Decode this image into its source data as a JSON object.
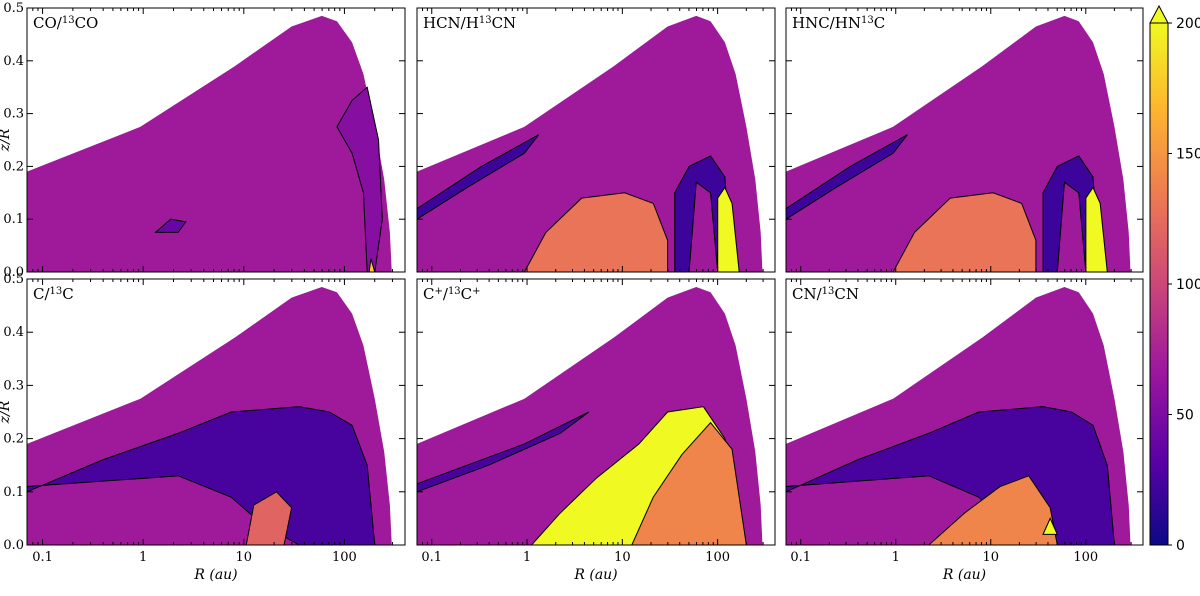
{
  "chart_data": {
    "type": "heatmap",
    "description": "Isotope abundance ratio maps in a protoplanetary disk (filled contours)",
    "xlabel": "R (au)",
    "ylabel": "z/R",
    "x_scale": "log",
    "xlim": [
      0.07,
      400
    ],
    "ylim": [
      0.0,
      0.5
    ],
    "x_ticks": [
      0.1,
      1,
      10,
      100
    ],
    "x_tick_labels": [
      "0.1",
      "1",
      "10",
      "100"
    ],
    "y_ticks": [
      0.0,
      0.1,
      0.2,
      0.3,
      0.4,
      0.5
    ],
    "y_tick_labels": [
      "0.0",
      "0.1",
      "0.2",
      "0.3",
      "0.4",
      "0.5"
    ],
    "colorbar": {
      "range": [
        0,
        200
      ],
      "ticks": [
        0,
        50,
        100,
        150,
        200
      ],
      "tick_labels": [
        "0",
        "50",
        "100",
        "150",
        "200"
      ],
      "extend": "max",
      "colormap": "plasma",
      "colors": [
        "#0d0887",
        "#5c01a6",
        "#9c179e",
        "#cc4778",
        "#ed7953",
        "#fdb42f",
        "#f0f921"
      ]
    },
    "panels": [
      {
        "title_main": "CO/",
        "title_sup": "13",
        "title_rest": "CO",
        "background_ratio": 69,
        "features": [
          {
            "ratio": 55,
            "region": "outer wedge z/R 0.1-0.35 at R~100-300 au"
          },
          {
            "ratio": 40,
            "region": "small lens near R~2 au z/R~0.08"
          },
          {
            "ratio": 180,
            "region": "midplane spike near R~200 au"
          }
        ]
      },
      {
        "title_main": "HCN/H",
        "title_sup": "13",
        "title_rest": "CN",
        "background_ratio": 69,
        "features": [
          {
            "ratio": 20,
            "region": "thin arc from R~0.07 au to R~1 au z/R 0.1-0.26"
          },
          {
            "ratio": 130,
            "region": "inner midplane R~3-60 au z/R<0.15"
          },
          {
            "ratio": 20,
            "region": "curved band R~60-150 au"
          },
          {
            "ratio": 200,
            "region": "curved band R~150-250 au"
          }
        ]
      },
      {
        "title_main": "HNC/HN",
        "title_sup": "13",
        "title_rest": "C",
        "background_ratio": 69,
        "features": [
          {
            "ratio": 20,
            "region": "thin arc inner disk"
          },
          {
            "ratio": 130,
            "region": "midplane R~3-60 au"
          },
          {
            "ratio": 20,
            "region": "curved band R~60-150 au"
          },
          {
            "ratio": 200,
            "region": "curved band R~150-250 au"
          }
        ]
      },
      {
        "title_main": "C/",
        "title_sup": "13",
        "title_rest": "C",
        "background_ratio": 69,
        "features": [
          {
            "ratio": 25,
            "region": "wedge from R~0.07 au to R~300 au z/R 0.1-0.26"
          },
          {
            "ratio": 120,
            "region": "small pocket R~15-40 au z/R<0.1"
          }
        ]
      },
      {
        "title_main": "C",
        "title_sup": "+",
        "title_rest": "/",
        "title_sup2": "13",
        "title_rest2": "C",
        "title_sup3": "+",
        "background_ratio": 69,
        "features": [
          {
            "ratio": 25,
            "region": "thin arc inner disk"
          },
          {
            "ratio": 200,
            "region": "outer bulk R~30-300 au z/R<0.26"
          },
          {
            "ratio": 140,
            "region": "middle region R~3-30 au"
          }
        ]
      },
      {
        "title_main": "CN/",
        "title_sup": "13",
        "title_rest": "CN",
        "background_ratio": 69,
        "features": [
          {
            "ratio": 25,
            "region": "wedge from R~0.07 au to R~300 au z/R 0.1-0.26"
          },
          {
            "ratio": 140,
            "region": "midplane R~10-80 au"
          },
          {
            "ratio": 200,
            "region": "small spot near R~80 au midplane"
          }
        ]
      }
    ]
  }
}
